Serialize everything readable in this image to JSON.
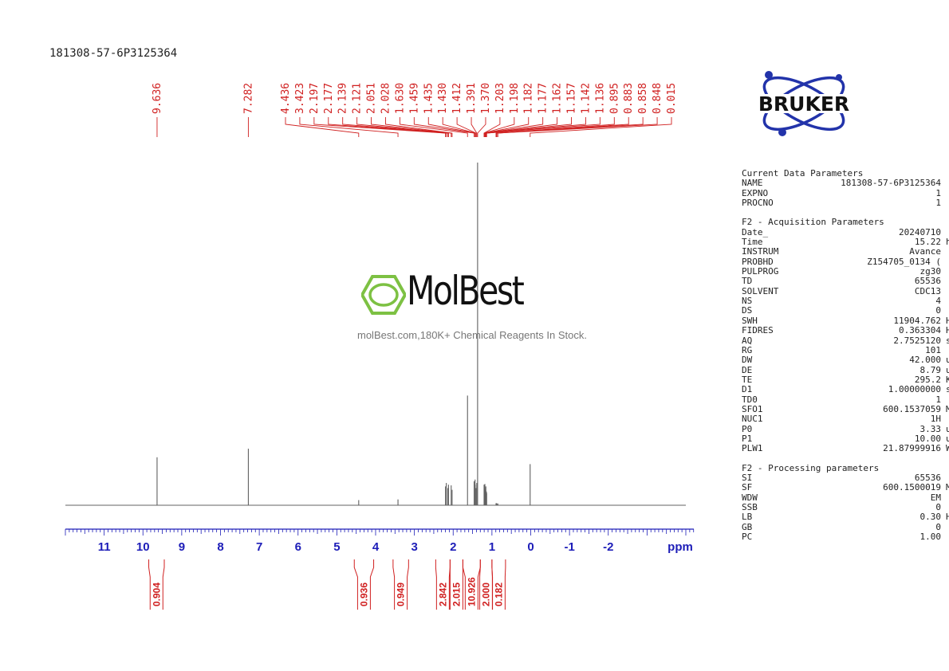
{
  "sample_id": "181308-57-6P3125364",
  "brand": "BRUKER",
  "watermark": {
    "name": "MolBest",
    "tagline": "molBest.com,180K+ Chemical Reagents In Stock."
  },
  "parameters": [
    {
      "title": "Current Data Parameters",
      "rows": [
        {
          "name": "NAME",
          "value": "181308-57-6P3125364",
          "unit": ""
        },
        {
          "name": "EXPNO",
          "value": "1",
          "unit": ""
        },
        {
          "name": "PROCNO",
          "value": "1",
          "unit": ""
        }
      ]
    },
    {
      "title": "F2 - Acquisition Parameters",
      "rows": [
        {
          "name": "Date_",
          "value": "20240710",
          "unit": ""
        },
        {
          "name": "Time",
          "value": "15.22",
          "unit": "h"
        },
        {
          "name": "INSTRUM",
          "value": "Avance",
          "unit": ""
        },
        {
          "name": "PROBHD",
          "value": "Z154705_0134 (",
          "unit": ""
        },
        {
          "name": "PULPROG",
          "value": "zg30",
          "unit": ""
        },
        {
          "name": "TD",
          "value": "65536",
          "unit": ""
        },
        {
          "name": "SOLVENT",
          "value": "CDC13",
          "unit": ""
        },
        {
          "name": "NS",
          "value": "4",
          "unit": ""
        },
        {
          "name": "DS",
          "value": "0",
          "unit": ""
        },
        {
          "name": "SWH",
          "value": "11904.762",
          "unit": "Hz"
        },
        {
          "name": "FIDRES",
          "value": "0.363304",
          "unit": "Hz"
        },
        {
          "name": "AQ",
          "value": "2.7525120",
          "unit": "sec"
        },
        {
          "name": "RG",
          "value": "101",
          "unit": ""
        },
        {
          "name": "DW",
          "value": "42.000",
          "unit": "usec"
        },
        {
          "name": "DE",
          "value": "8.79",
          "unit": "usec"
        },
        {
          "name": "TE",
          "value": "295.2",
          "unit": "K"
        },
        {
          "name": "D1",
          "value": "1.00000000",
          "unit": "sec"
        },
        {
          "name": "TD0",
          "value": "1",
          "unit": ""
        },
        {
          "name": "SFO1",
          "value": "600.1537059",
          "unit": "MHz"
        },
        {
          "name": "NUC1",
          "value": "1H",
          "unit": ""
        },
        {
          "name": "P0",
          "value": "3.33",
          "unit": "usec"
        },
        {
          "name": "P1",
          "value": "10.00",
          "unit": "usec"
        },
        {
          "name": "PLW1",
          "value": "21.87999916",
          "unit": "W"
        }
      ]
    },
    {
      "title": "F2 - Processing parameters",
      "rows": [
        {
          "name": "SI",
          "value": "65536",
          "unit": ""
        },
        {
          "name": "SF",
          "value": "600.1500019",
          "unit": "MHz"
        },
        {
          "name": "WDW",
          "value": "EM",
          "unit": ""
        },
        {
          "name": "SSB",
          "value": "0",
          "unit": ""
        },
        {
          "name": "LB",
          "value": "0.30",
          "unit": "Hz"
        },
        {
          "name": "GB",
          "value": "0",
          "unit": ""
        },
        {
          "name": "PC",
          "value": "1.00",
          "unit": ""
        }
      ]
    }
  ],
  "chart_data": {
    "type": "line",
    "xlabel": "ppm",
    "xlim": [
      12.0,
      -4.0
    ],
    "x_ticks": [
      "11",
      "10",
      "9",
      "8",
      "7",
      "6",
      "5",
      "4",
      "3",
      "2",
      "1",
      "0",
      "-1",
      "-2"
    ],
    "x_tick_values": [
      11,
      10,
      9,
      8,
      7,
      6,
      5,
      4,
      3,
      2,
      1,
      0,
      -1,
      -2
    ],
    "peak_labels": [
      "9.636",
      "7.282",
      "4.436",
      "3.423",
      "2.197",
      "2.177",
      "2.139",
      "2.121",
      "2.051",
      "2.028",
      "1.630",
      "1.459",
      "1.435",
      "1.430",
      "1.412",
      "1.391",
      "1.370",
      "1.203",
      "1.198",
      "1.182",
      "1.177",
      "1.162",
      "1.157",
      "1.142",
      "1.136",
      "0.895",
      "0.883",
      "0.858",
      "0.848",
      "0.015"
    ],
    "peak_shifts": [
      9.636,
      7.282,
      4.436,
      3.423,
      2.197,
      2.177,
      2.139,
      2.121,
      2.051,
      2.028,
      1.63,
      1.459,
      1.435,
      1.43,
      1.412,
      1.391,
      1.37,
      1.203,
      1.198,
      1.182,
      1.177,
      1.162,
      1.157,
      1.142,
      1.136,
      0.895,
      0.883,
      0.858,
      0.848,
      0.015
    ],
    "peak_intensities": [
      0.14,
      0.165,
      0.015,
      0.017,
      0.055,
      0.065,
      0.05,
      0.06,
      0.058,
      0.045,
      0.32,
      0.07,
      0.075,
      0.06,
      0.05,
      0.065,
      1.0,
      0.06,
      0.05,
      0.062,
      0.052,
      0.045,
      0.055,
      0.04,
      0.035,
      0.006,
      0.006,
      0.005,
      0.005,
      0.12
    ],
    "integrals": [
      {
        "label": "0.904",
        "from": 9.85,
        "to": 9.45
      },
      {
        "label": "0.936",
        "from": 4.55,
        "to": 4.05
      },
      {
        "label": "0.949",
        "from": 3.55,
        "to": 3.15
      },
      {
        "label": "2.842",
        "from": 2.45,
        "to": 2.08
      },
      {
        "label": "2.015",
        "from": 2.08,
        "to": 1.75
      },
      {
        "label": "10.926",
        "from": 1.75,
        "to": 1.3
      },
      {
        "label": "2.000",
        "from": 1.3,
        "to": 1.0
      },
      {
        "label": "0.182",
        "from": 1.0,
        "to": 0.65
      }
    ],
    "colors": {
      "axis": "#1d1db8",
      "annotation": "#d02020",
      "trace": "#606060",
      "logo_blue": "#2233aa",
      "watermark_green": "#7dc143"
    }
  }
}
